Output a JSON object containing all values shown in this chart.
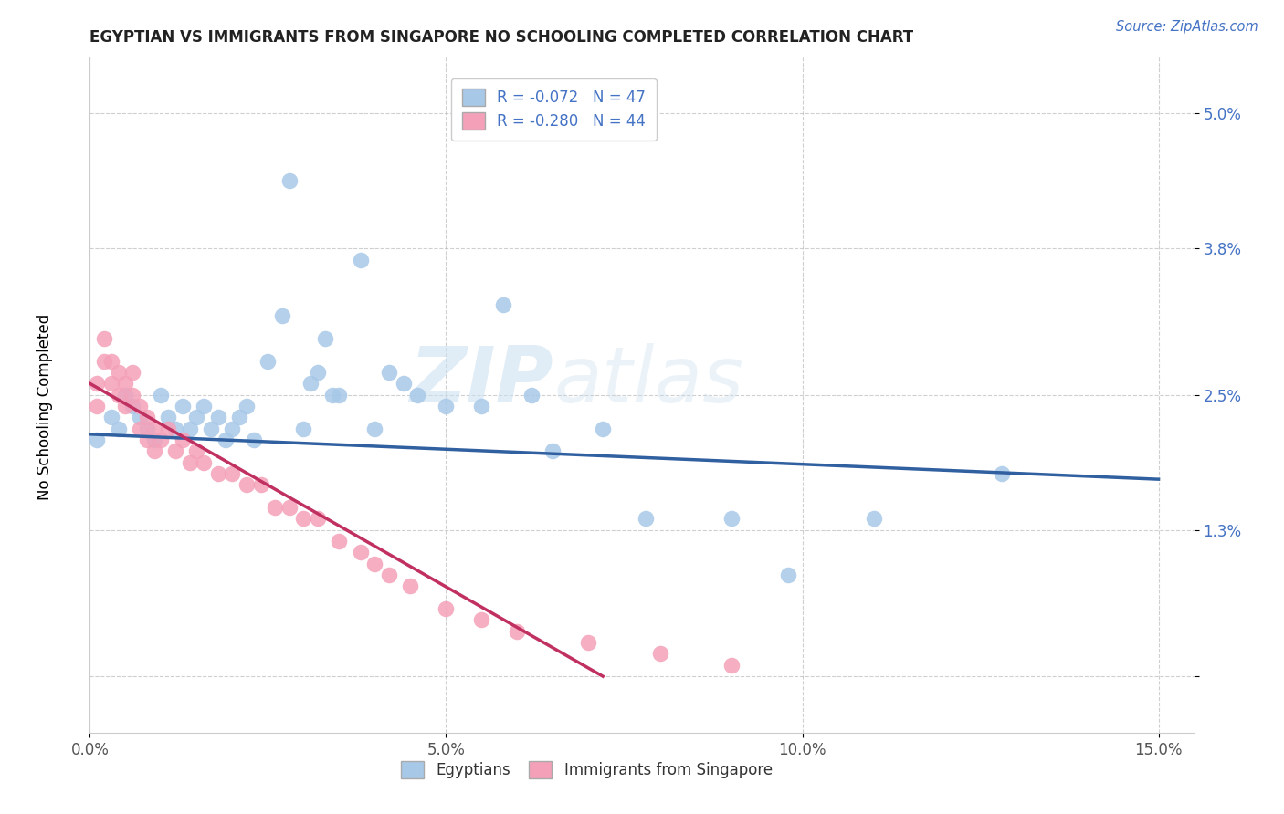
{
  "title": "EGYPTIAN VS IMMIGRANTS FROM SINGAPORE NO SCHOOLING COMPLETED CORRELATION CHART",
  "source": "Source: ZipAtlas.com",
  "ylabel": "No Schooling Completed",
  "legend_r1": "R = -0.072",
  "legend_n1": "N = 47",
  "legend_r2": "R = -0.280",
  "legend_n2": "N = 44",
  "color_blue": "#a8c8e8",
  "color_pink": "#f4a0b8",
  "line_blue": "#3060a0",
  "line_pink": "#c03060",
  "watermark_zip": "ZIP",
  "watermark_atlas": "atlas",
  "blue_x": [
    0.001,
    0.003,
    0.004,
    0.005,
    0.006,
    0.007,
    0.008,
    0.009,
    0.01,
    0.011,
    0.012,
    0.013,
    0.014,
    0.015,
    0.016,
    0.017,
    0.018,
    0.019,
    0.02,
    0.021,
    0.022,
    0.023,
    0.025,
    0.027,
    0.028,
    0.03,
    0.031,
    0.032,
    0.033,
    0.034,
    0.035,
    0.038,
    0.04,
    0.042,
    0.044,
    0.046,
    0.05,
    0.055,
    0.058,
    0.062,
    0.065,
    0.072,
    0.078,
    0.09,
    0.098,
    0.11,
    0.128
  ],
  "blue_y": [
    0.021,
    0.023,
    0.022,
    0.025,
    0.024,
    0.023,
    0.022,
    0.021,
    0.025,
    0.023,
    0.022,
    0.024,
    0.022,
    0.023,
    0.024,
    0.022,
    0.023,
    0.021,
    0.022,
    0.023,
    0.024,
    0.021,
    0.028,
    0.032,
    0.044,
    0.022,
    0.026,
    0.027,
    0.03,
    0.025,
    0.025,
    0.037,
    0.022,
    0.027,
    0.026,
    0.025,
    0.024,
    0.024,
    0.033,
    0.025,
    0.02,
    0.022,
    0.014,
    0.014,
    0.009,
    0.014,
    0.018
  ],
  "pink_x": [
    0.001,
    0.001,
    0.002,
    0.002,
    0.003,
    0.003,
    0.004,
    0.004,
    0.005,
    0.005,
    0.006,
    0.006,
    0.007,
    0.007,
    0.008,
    0.008,
    0.009,
    0.009,
    0.01,
    0.011,
    0.012,
    0.013,
    0.014,
    0.015,
    0.016,
    0.018,
    0.02,
    0.022,
    0.024,
    0.026,
    0.028,
    0.03,
    0.032,
    0.035,
    0.038,
    0.04,
    0.042,
    0.045,
    0.05,
    0.055,
    0.06,
    0.07,
    0.08,
    0.09
  ],
  "pink_y": [
    0.026,
    0.024,
    0.03,
    0.028,
    0.028,
    0.026,
    0.027,
    0.025,
    0.026,
    0.024,
    0.027,
    0.025,
    0.024,
    0.022,
    0.023,
    0.021,
    0.022,
    0.02,
    0.021,
    0.022,
    0.02,
    0.021,
    0.019,
    0.02,
    0.019,
    0.018,
    0.018,
    0.017,
    0.017,
    0.015,
    0.015,
    0.014,
    0.014,
    0.012,
    0.011,
    0.01,
    0.009,
    0.008,
    0.006,
    0.005,
    0.004,
    0.003,
    0.002,
    0.001
  ],
  "blue_line_x": [
    0.0,
    0.15
  ],
  "blue_line_y": [
    0.0215,
    0.0175
  ],
  "pink_line_x": [
    0.0,
    0.072
  ],
  "pink_line_y": [
    0.026,
    0.0
  ],
  "xlim": [
    0.0,
    0.155
  ],
  "ylim": [
    -0.005,
    0.055
  ],
  "xticks": [
    0.0,
    0.05,
    0.1,
    0.15
  ],
  "xticklabels": [
    "0.0%",
    "5.0%",
    "10.0%",
    "15.0%"
  ],
  "yticks": [
    0.0,
    0.013,
    0.025,
    0.038,
    0.05
  ],
  "yticklabels": [
    "",
    "1.3%",
    "2.5%",
    "3.8%",
    "5.0%"
  ]
}
